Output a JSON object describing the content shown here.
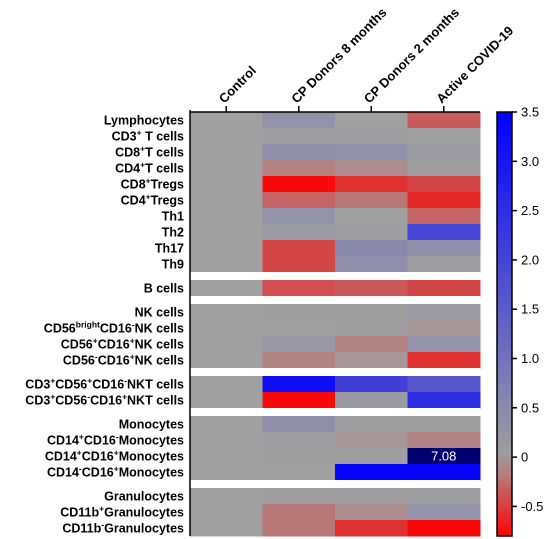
{
  "chart_data": {
    "type": "heatmap",
    "columns": [
      "Control",
      "CP Donors 8 months",
      "CP Donors 2 months",
      "Active COVID-19"
    ],
    "groups": [
      {
        "rows": [
          {
            "label": "Lymphocytes",
            "base": "Lymphocytes",
            "values": [
              0,
              0.3,
              0,
              -0.35
            ]
          },
          {
            "label": "CD3⁺ T cells",
            "base": "CD3",
            "sup": "+",
            "tail": " T cells",
            "values": [
              0,
              0.05,
              0.05,
              0
            ]
          },
          {
            "label": "CD8⁺T cells",
            "base": "CD8",
            "sup": "+",
            "tail": "T cells",
            "values": [
              0,
              0.4,
              0.35,
              0.1
            ]
          },
          {
            "label": "CD4⁺T cells",
            "base": "CD4",
            "sup": "+",
            "tail": "T cells",
            "values": [
              0,
              -0.15,
              -0.1,
              0.05
            ]
          },
          {
            "label": "CD8⁺Tregs",
            "base": "CD8",
            "sup": "+",
            "tail": "Tregs",
            "values": [
              0,
              -0.75,
              -0.55,
              -0.45
            ]
          },
          {
            "label": "CD4⁺Tregs",
            "base": "CD4",
            "sup": "+",
            "tail": "Tregs",
            "values": [
              0,
              -0.3,
              -0.2,
              -0.6
            ]
          },
          {
            "label": "Th1",
            "base": "Th1",
            "values": [
              0,
              0.3,
              0,
              -0.3
            ]
          },
          {
            "label": "Th2",
            "base": "Th2",
            "values": [
              0,
              0.1,
              0.05,
              2.0
            ]
          },
          {
            "label": "Th17",
            "base": "Th17",
            "values": [
              0,
              -0.45,
              0.5,
              0.4
            ]
          },
          {
            "label": "Th9",
            "base": "Th9",
            "values": [
              0,
              -0.45,
              0.4,
              0.05
            ]
          }
        ]
      },
      {
        "rows": [
          {
            "label": "B cells",
            "base": "B cells",
            "values": [
              0,
              -0.4,
              -0.35,
              -0.45
            ]
          }
        ]
      },
      {
        "rows": [
          {
            "label": "NK cells",
            "base": "NK cells",
            "values": [
              0,
              0.05,
              0.05,
              0.1
            ]
          },
          {
            "label": "CD56brightCD16⁻NK cells",
            "base": "CD56",
            "sup": "bright",
            "base2": "CD16",
            "sup2": "-",
            "tail": "NK cells",
            "values": [
              0,
              0,
              0.05,
              -0.05
            ]
          },
          {
            "label": "CD56⁺CD16⁺NK cells",
            "base": "CD56",
            "sup": "+",
            "base2": "CD16",
            "sup2": "+",
            "tail": "NK cells",
            "values": [
              0,
              0.2,
              -0.15,
              0.3
            ]
          },
          {
            "label": "CD56⁻CD16⁺NK cells",
            "base": "CD56",
            "sup": "-",
            "base2": "CD16",
            "sup2": "+",
            "tail": "NK cells",
            "values": [
              0,
              -0.15,
              -0.05,
              -0.55
            ]
          }
        ]
      },
      {
        "rows": [
          {
            "label": "CD3⁺CD56⁺CD16⁻NKT cells",
            "base": "CD3",
            "sup": "+",
            "base2": "CD56",
            "sup2": "+",
            "base3": "CD16",
            "sup3": "-",
            "tail": "NKT cells",
            "values": [
              0,
              3.2,
              2.1,
              1.6
            ]
          },
          {
            "label": "CD3⁺CD56⁻CD16⁺NKT cells",
            "base": "CD3",
            "sup": "+",
            "base2": "CD56",
            "sup2": "-",
            "base3": "CD16",
            "sup3": "+",
            "tail": "NKT cells",
            "values": [
              0,
              -0.75,
              0.15,
              2.5
            ]
          }
        ]
      },
      {
        "rows": [
          {
            "label": "Monocytes",
            "base": "Monocytes",
            "values": [
              0,
              0.4,
              0.05,
              0.05
            ]
          },
          {
            "label": "CD14⁺CD16⁻Monocytes",
            "base": "CD14",
            "sup": "+",
            "base2": "CD16",
            "sup2": "-",
            "tail": "Monocytes",
            "values": [
              0,
              0.05,
              -0.05,
              -0.15
            ]
          },
          {
            "label": "CD14⁺CD16⁺Monocytes",
            "base": "CD14",
            "sup": "+",
            "base2": "CD16",
            "sup2": "+",
            "tail": "Monocytes",
            "values": [
              0,
              0.05,
              0.05,
              7.08
            ],
            "annotations": [
              null,
              null,
              null,
              "7.08"
            ]
          },
          {
            "label": "CD14⁻CD16⁺Monocytes",
            "base": "CD14",
            "sup": "-",
            "base2": "CD16",
            "sup2": "+",
            "tail": "Monocytes",
            "values": [
              0,
              0,
              3.4,
              3.4
            ]
          }
        ]
      },
      {
        "rows": [
          {
            "label": "Granulocytes",
            "base": "Granulocytes",
            "values": [
              0,
              0.05,
              0.05,
              0.05
            ]
          },
          {
            "label": "CD11b⁺Granulocytes",
            "base": "CD11b",
            "sup": "+",
            "tail": "Granulocytes",
            "values": [
              0,
              -0.2,
              -0.1,
              0.3
            ]
          },
          {
            "label": "CD11b⁻Granulocytes",
            "base": "CD11b",
            "sup": "-",
            "tail": "Granulocytes",
            "values": [
              0,
              -0.2,
              -0.55,
              -0.75
            ]
          }
        ]
      }
    ],
    "colorbar": {
      "min": -0.8,
      "max": 3.5,
      "ticks": [
        3.5,
        3.0,
        2.5,
        2.0,
        1.5,
        1.0,
        0.5,
        0,
        -0.5
      ],
      "tick_labels": [
        "3.5",
        "3.0",
        "2.5",
        "2.0",
        "1.5",
        "1.0",
        "0.5",
        "0",
        "-0.5"
      ],
      "colors": {
        "low": "#ff0000",
        "mid": "#a0a0a0",
        "high": "#0000ff",
        "overflow": "#00006e"
      }
    }
  }
}
